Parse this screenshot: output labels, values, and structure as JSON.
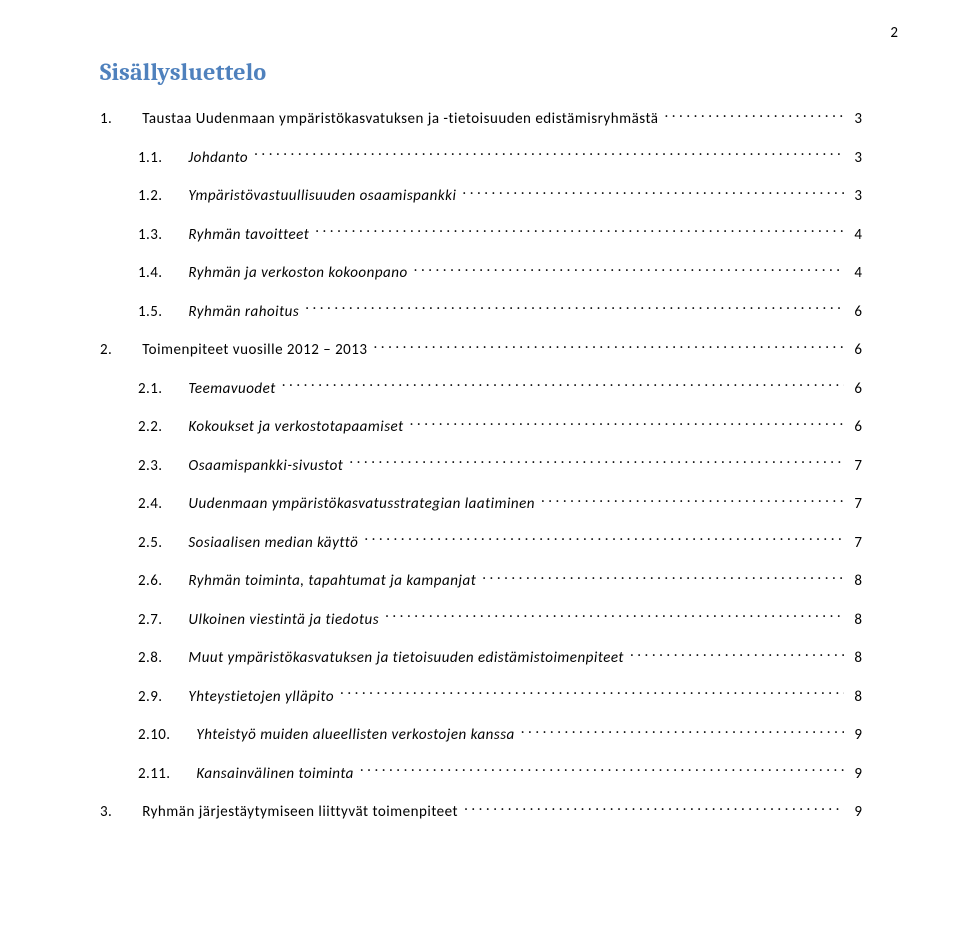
{
  "page_number": "2",
  "heading": {
    "text": "Sisällysluettelo",
    "color": "#4f81bd"
  },
  "toc": [
    {
      "level": 1,
      "num": "1.",
      "label": "Taustaa Uudenmaan ympäristökasvatuksen ja -tietoisuuden edistämisryhmästä",
      "page": "3"
    },
    {
      "level": 2,
      "num": "1.1.",
      "label": "Johdanto",
      "page": "3"
    },
    {
      "level": 2,
      "num": "1.2.",
      "label": "Ympäristövastuullisuuden osaamispankki",
      "page": "3"
    },
    {
      "level": 2,
      "num": "1.3.",
      "label": "Ryhmän tavoitteet",
      "page": "4"
    },
    {
      "level": 2,
      "num": "1.4.",
      "label": "Ryhmän ja verkoston kokoonpano",
      "page": "4"
    },
    {
      "level": 2,
      "num": "1.5.",
      "label": "Ryhmän rahoitus",
      "page": "6"
    },
    {
      "level": 1,
      "num": "2.",
      "label": "Toimenpiteet vuosille 2012 – 2013",
      "page": "6"
    },
    {
      "level": 2,
      "num": "2.1.",
      "label": "Teemavuodet",
      "page": "6"
    },
    {
      "level": 2,
      "num": "2.2.",
      "label": "Kokoukset ja verkostotapaamiset",
      "page": "6"
    },
    {
      "level": 2,
      "num": "2.3.",
      "label": "Osaamispankki-sivustot",
      "page": "7"
    },
    {
      "level": 2,
      "num": "2.4.",
      "label": "Uudenmaan ympäristökasvatusstrategian laatiminen",
      "page": "7"
    },
    {
      "level": 2,
      "num": "2.5.",
      "label": "Sosiaalisen median käyttö",
      "page": "7"
    },
    {
      "level": 2,
      "num": "2.6.",
      "label": "Ryhmän toiminta, tapahtumat ja kampanjat",
      "page": "8"
    },
    {
      "level": 2,
      "num": "2.7.",
      "label": "Ulkoinen viestintä ja tiedotus",
      "page": "8"
    },
    {
      "level": 2,
      "num": "2.8.",
      "label": "Muut ympäristökasvatuksen ja tietoisuuden edistämistoimenpiteet",
      "page": "8"
    },
    {
      "level": 2,
      "num": "2.9.",
      "label": "Yhteystietojen ylläpito",
      "page": "8"
    },
    {
      "level": 2,
      "num": "2.10.",
      "label": "Yhteistyö muiden alueellisten verkostojen kanssa",
      "page": "9"
    },
    {
      "level": 2,
      "num": "2.11.",
      "label": "Kansainvälinen toiminta",
      "page": "9"
    },
    {
      "level": 1,
      "num": "3.",
      "label": "Ryhmän järjestäytymiseen liittyvät toimenpiteet",
      "page": "9"
    }
  ]
}
